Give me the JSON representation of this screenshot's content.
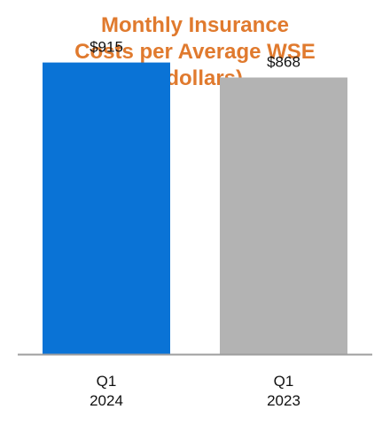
{
  "chart_data": {
    "type": "bar",
    "title_lines": [
      "Monthly Insurance",
      "Costs per Average WSE",
      "($dollars)"
    ],
    "categories": [
      [
        "Q1",
        "2024"
      ],
      [
        "Q1",
        "2023"
      ]
    ],
    "values": [
      915,
      868
    ],
    "value_labels": [
      "$915",
      "$868"
    ],
    "colors": [
      "#0A73D6",
      "#B3B3B3"
    ],
    "title_color": "#E07A2E",
    "axis_color": "#9E9E9E",
    "ylim": [
      0,
      1000
    ],
    "grid": false,
    "legend": "none"
  }
}
